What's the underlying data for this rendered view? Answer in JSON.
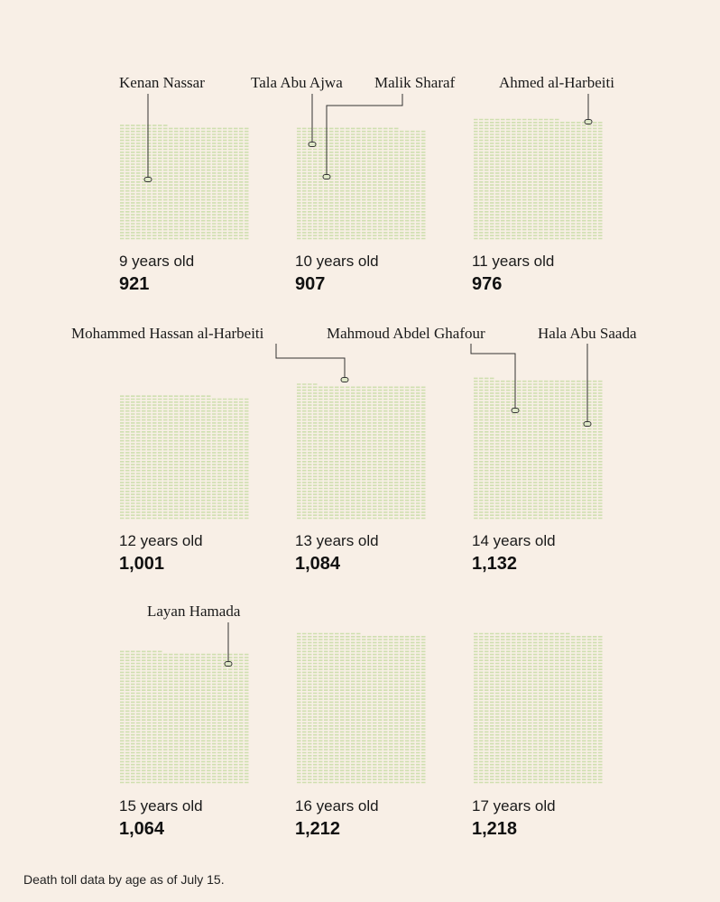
{
  "chart_data": {
    "type": "unit-grid",
    "unit": "one mark per child killed",
    "panels": [
      {
        "age": "9 years old",
        "count_label": "921",
        "value": 921
      },
      {
        "age": "10 years old",
        "count_label": "907",
        "value": 907
      },
      {
        "age": "11 years old",
        "count_label": "976",
        "value": 976
      },
      {
        "age": "12 years old",
        "count_label": "1,001",
        "value": 1001
      },
      {
        "age": "13 years old",
        "count_label": "1,084",
        "value": 1084
      },
      {
        "age": "14 years old",
        "count_label": "1,132",
        "value": 1132
      },
      {
        "age": "15 years old",
        "count_label": "1,064",
        "value": 1064
      },
      {
        "age": "16 years old",
        "count_label": "1,212",
        "value": 1212
      },
      {
        "age": "17 years old",
        "count_label": "1,218",
        "value": 1218
      }
    ],
    "annotations": [
      {
        "panel": 0,
        "name": "Kenan Nassar"
      },
      {
        "panel": 1,
        "name": "Tala Abu Ajwa"
      },
      {
        "panel": 1,
        "name": "Malik Sharaf"
      },
      {
        "panel": 2,
        "name": "Ahmed al-Harbeiti"
      },
      {
        "panel": 4,
        "name": "Mohammed Hassan al-Harbeiti"
      },
      {
        "panel": 5,
        "name": "Mahmoud Abdel Ghafour"
      },
      {
        "panel": 5,
        "name": "Hala Abu Saada"
      },
      {
        "panel": 6,
        "name": "Layan Hamada"
      }
    ],
    "footnote": "Death toll data by age as of July 15."
  },
  "colors": {
    "background": "#f8efe6",
    "mark": "#cfdfb0",
    "leader": "#333333",
    "marker_fill": "#dfe8c8"
  }
}
